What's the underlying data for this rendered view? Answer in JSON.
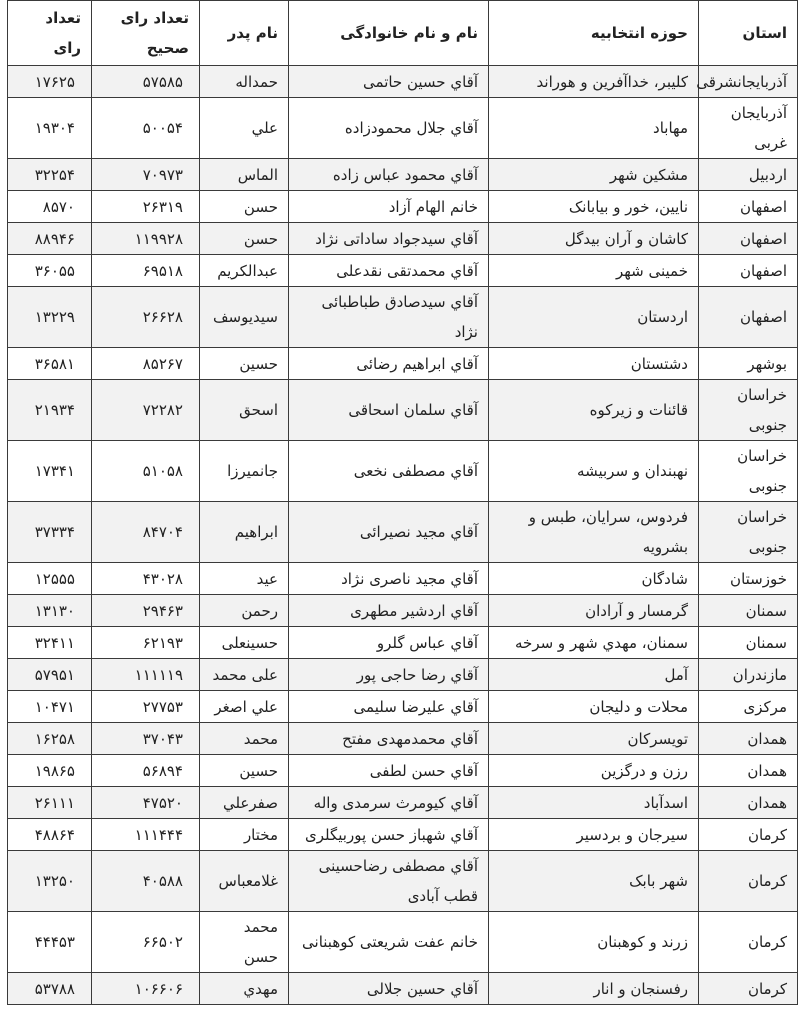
{
  "headers": [
    "استان",
    "حوزه انتخابیه",
    "نام و نام خانوادگی",
    "نام پدر",
    "تعداد رای صحیح",
    "تعداد رای"
  ],
  "rows": [
    [
      "آذربايجانشرقی",
      "کليبر، خداآفرين و هوراند",
      "آقاي حسين حاتمی",
      "حمداله",
      "۵۷۵۸۵",
      "۱۷۶۲۵"
    ],
    [
      "آذربايجان غربی",
      "مهاباد",
      "آقاي جلال محمودزاده",
      "علي",
      "۵۰۰۵۴",
      "۱۹۳۰۴"
    ],
    [
      "اردبيل",
      "مشکين شهر",
      "آقاي محمود عباس زاده",
      "الماس",
      "۷۰۹۷۳",
      "۳۲۲۵۴"
    ],
    [
      "اصفهان",
      "نايين، خور و بيابانک",
      "خانم الهام آزاد",
      "حسن",
      "۲۶۳۱۹",
      "۸۵۷۰"
    ],
    [
      "اصفهان",
      "کاشان و آران بيدگل",
      "آقاي سيدجواد ساداتی نژاد",
      "حسن",
      "۱۱۹۹۲۸",
      "۸۸۹۴۶"
    ],
    [
      "اصفهان",
      "خمينی شهر",
      "آقاي محمدتقی نقدعلی",
      "عبدالکريم",
      "۶۹۵۱۸",
      "۳۶۰۵۵"
    ],
    [
      "اصفهان",
      "اردستان",
      "آقاي سيدصادق طباطبائی نژاد",
      "سيديوسف",
      "۲۶۶۲۸",
      "۱۳۲۲۹"
    ],
    [
      "بوشهر",
      "دشتستان",
      "آقاي ابراهيم رضائی",
      "حسين",
      "۸۵۲۶۷",
      "۳۶۵۸۱"
    ],
    [
      "خراسان جنوبی",
      "قائنات و زيرکوه",
      "آقاي سلمان اسحاقی",
      "اسحق",
      "۷۲۲۸۲",
      "۲۱۹۳۴"
    ],
    [
      "خراسان جنوبی",
      "نهبندان و سربيشه",
      "آقاي مصطفی نخعی",
      "جانميرزا",
      "۵۱۰۵۸",
      "۱۷۳۴۱"
    ],
    [
      "خراسان جنوبی",
      "فردوس، سرايان، طبس و بشرويه",
      "آقاي مجيد نصيرائی",
      "ابراهيم",
      "۸۴۷۰۴",
      "۳۷۳۳۴"
    ],
    [
      "خوزستان",
      "شادگان",
      "آقاي مجيد ناصری نژاد",
      "عيد",
      "۴۳۰۲۸",
      "۱۲۵۵۵"
    ],
    [
      "سمنان",
      "گرمسار و آرادان",
      "آقاي اردشير مطهری",
      "رحمن",
      "۲۹۴۶۳",
      "۱۳۱۳۰"
    ],
    [
      "سمنان",
      "سمنان، مهدي شهر و سرخه",
      "آقاي عباس گلرو",
      "حسينعلی",
      "۶۲۱۹۳",
      "۳۲۴۱۱"
    ],
    [
      "مازندران",
      "آمل",
      "آقاي رضا حاجی پور",
      "علی محمد",
      "۱۱۱۱۱۹",
      "۵۷۹۵۱"
    ],
    [
      "مرکزی",
      "محلات و دليجان",
      "آقاي عليرضا سليمی",
      "علي اصغر",
      "۲۷۷۵۳",
      "۱۰۴۷۱"
    ],
    [
      "همدان",
      "تويسرکان",
      "آقاي محمدمهدی مفتح",
      "محمد",
      "۳۷۰۴۳",
      "۱۶۲۵۸"
    ],
    [
      "همدان",
      "رزن و درگزين",
      "آقاي حسن لطفی",
      "حسين",
      "۵۶۸۹۴",
      "۱۹۸۶۵"
    ],
    [
      "همدان",
      "اسدآباد",
      "آقاي کيومرث سرمدی واله",
      "صفرعلي",
      "۴۷۵۲۰",
      "۲۶۱۱۱"
    ],
    [
      "کرمان",
      "سيرجان و بردسير",
      "آقاي شهباز حسن پوربيگلری",
      "مختار",
      "۱۱۱۴۴۴",
      "۴۸۸۶۴"
    ],
    [
      "کرمان",
      "شهر بابک",
      "آقاي مصطفی رضاحسينی قطب آبادی",
      "غلامعباس",
      "۴۰۵۸۸",
      "۱۳۲۵۰"
    ],
    [
      "کرمان",
      "زرند و کوهبنان",
      "خانم عفت شريعتی کوهبنانی",
      "محمد حسن",
      "۶۶۵۰۲",
      "۴۴۴۵۳"
    ],
    [
      "کرمان",
      "رفسنجان و انار",
      "آقاي حسين جلالی",
      "مهدي",
      "۱۰۶۶۰۶",
      "۵۳۷۸۸"
    ]
  ]
}
